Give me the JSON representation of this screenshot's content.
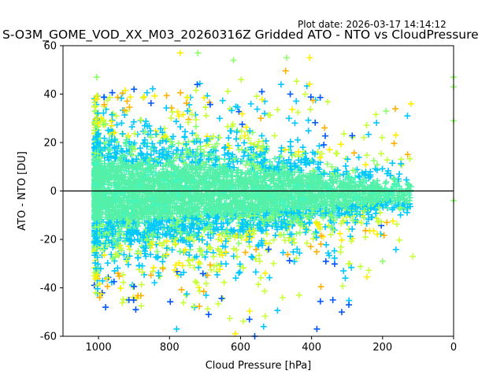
{
  "header": {
    "plot_date": "Plot date: 2026-03-17 14:14:12",
    "title": "S-O3M_GOME_VOD_XX_M03_20260316Z Gridded ATO - NTO vs CloudPressure"
  },
  "chart_data": {
    "type": "scatter",
    "marker": "plus",
    "xlabel": "Cloud Pressure [hPa]",
    "ylabel": "ATO - NTO [DU]",
    "xlim": [
      1100,
      0
    ],
    "ylim": [
      -60,
      60
    ],
    "x_ticks": [
      1000,
      800,
      600,
      400,
      200,
      0
    ],
    "y_ticks": [
      -60,
      -40,
      -20,
      0,
      20,
      40,
      60
    ],
    "reference_line": {
      "y": 0,
      "color": "#000000"
    },
    "grid": false,
    "legend": "none",
    "colors": {
      "dense_core": "#55f0a8",
      "core_edge": "#3ff7c0",
      "mid_band": "#00c8ff",
      "yellow_green": "#c8ff3a",
      "yellow": "#ffee00",
      "light_green": "#8cff6a",
      "blue": "#0055ff",
      "dark_blue": "#0000cc",
      "orange": "#ffb000"
    },
    "distribution": {
      "x_range": [
        120,
        1012
      ],
      "core_halfwidth_by_pressure": [
        {
          "x": 1010,
          "y": 15
        },
        {
          "x": 900,
          "y": 14
        },
        {
          "x": 700,
          "y": 12
        },
        {
          "x": 500,
          "y": 10
        },
        {
          "x": 300,
          "y": 7
        },
        {
          "x": 200,
          "y": 5
        }
      ],
      "outer_envelope": [
        {
          "x": 1010,
          "y_min": -45,
          "y_max": 40
        },
        {
          "x": 900,
          "y_min": -48,
          "y_max": 42
        },
        {
          "x": 750,
          "y_min": -50,
          "y_max": 45
        },
        {
          "x": 600,
          "y_min": -55,
          "y_max": 52
        },
        {
          "x": 450,
          "y_min": -50,
          "y_max": 50
        },
        {
          "x": 300,
          "y_min": -50,
          "y_max": 40
        },
        {
          "x": 200,
          "y_min": -30,
          "y_max": 35
        },
        {
          "x": 120,
          "y_min": -28,
          "y_max": 36
        }
      ]
    },
    "outliers": [
      {
        "x": 980,
        "y": -48,
        "c": "blue"
      },
      {
        "x": 895,
        "y": -49,
        "c": "blue"
      },
      {
        "x": 690,
        "y": -51,
        "c": "blue"
      },
      {
        "x": 575,
        "y": -53,
        "c": "blue"
      },
      {
        "x": 560,
        "y": -60,
        "c": "blue"
      },
      {
        "x": 385,
        "y": -57,
        "c": "blue"
      },
      {
        "x": 315,
        "y": -50,
        "c": "blue"
      },
      {
        "x": 295,
        "y": -47,
        "c": "blue"
      },
      {
        "x": 535,
        "y": -56,
        "c": "mid_band"
      },
      {
        "x": 615,
        "y": -59,
        "c": "yellow"
      },
      {
        "x": 780,
        "y": -57,
        "c": "mid_band"
      },
      {
        "x": 340,
        "y": -45,
        "c": "blue"
      },
      {
        "x": 1005,
        "y": 47,
        "c": "light_green"
      },
      {
        "x": 770,
        "y": 57,
        "c": "yellow"
      },
      {
        "x": 720,
        "y": 57,
        "c": "light_green"
      },
      {
        "x": 620,
        "y": 54,
        "c": "light_green"
      },
      {
        "x": 470,
        "y": 55,
        "c": "light_green"
      },
      {
        "x": 405,
        "y": 55,
        "c": "yellow"
      },
      {
        "x": 460,
        "y": 40,
        "c": "blue"
      },
      {
        "x": 540,
        "y": 41,
        "c": "blue"
      },
      {
        "x": 900,
        "y": 42,
        "c": "blue"
      },
      {
        "x": 0,
        "y": 47,
        "c": "light_green"
      },
      {
        "x": 0,
        "y": 43,
        "c": "light_green"
      },
      {
        "x": 0,
        "y": 29,
        "c": "light_green"
      },
      {
        "x": 0,
        "y": -4,
        "c": "light_green"
      },
      {
        "x": 120,
        "y": 36,
        "c": "yellow"
      },
      {
        "x": 130,
        "y": 31,
        "c": "mid_band"
      },
      {
        "x": 190,
        "y": 33,
        "c": "light_green"
      },
      {
        "x": 115,
        "y": -27,
        "c": "yellow_green"
      },
      {
        "x": 200,
        "y": -29,
        "c": "light_green"
      },
      {
        "x": 310,
        "y": -33,
        "c": "mid_band"
      },
      {
        "x": 305,
        "y": -36,
        "c": "mid_band"
      }
    ]
  }
}
